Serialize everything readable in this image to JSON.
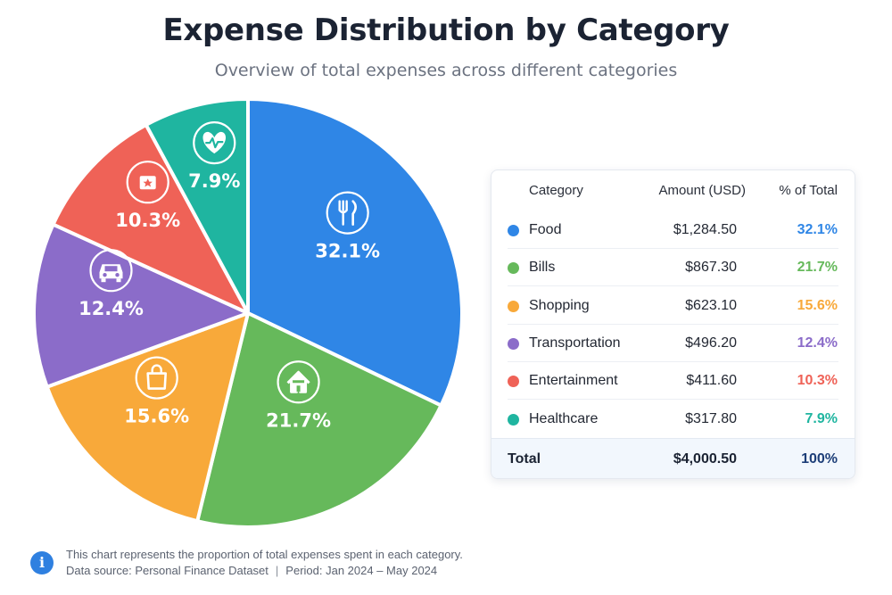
{
  "title": "Expense Distribution by Category",
  "subtitle": "Overview of total expenses across different categories",
  "chart_data": {
    "type": "pie",
    "title": "Expense Distribution by Category",
    "subtitle": "Overview of total expenses across different categories",
    "unit": "USD",
    "slices": [
      {
        "label": "Food",
        "amount": 1284.5,
        "amount_text": "$1,284.50",
        "percent": 32.1,
        "percent_text": "32.1%",
        "color": "#2f86e6",
        "icon": "utensils-icon"
      },
      {
        "label": "Bills",
        "amount": 867.3,
        "amount_text": "$867.30",
        "percent": 21.7,
        "percent_text": "21.7%",
        "color": "#66b95b",
        "icon": "home-icon"
      },
      {
        "label": "Shopping",
        "amount": 623.1,
        "amount_text": "$623.10",
        "percent": 15.6,
        "percent_text": "15.6%",
        "color": "#f8a93a",
        "icon": "shopping-bag-icon"
      },
      {
        "label": "Transportation",
        "amount": 496.2,
        "amount_text": "$496.20",
        "percent": 12.4,
        "percent_text": "12.4%",
        "color": "#8b6cc9",
        "icon": "car-icon"
      },
      {
        "label": "Entertainment",
        "amount": 411.6,
        "amount_text": "$411.60",
        "percent": 10.3,
        "percent_text": "10.3%",
        "color": "#ef6257",
        "icon": "ticket-icon"
      },
      {
        "label": "Healthcare",
        "amount": 317.8,
        "amount_text": "$317.80",
        "percent": 7.9,
        "percent_text": "7.9%",
        "color": "#1fb5a0",
        "icon": "heart-pulse-icon"
      }
    ]
  },
  "table": {
    "headers": {
      "category": "Category",
      "amount": "Amount (USD)",
      "percent": "% of Total"
    },
    "total": {
      "label": "Total",
      "amount": "$4,000.50",
      "percent": "100%"
    }
  },
  "footnote": {
    "line1": "This chart represents the proportion of total expenses spent in each category.",
    "source": "Data source: Personal Finance Dataset",
    "separator": "|",
    "period": "Period: Jan 2024 – May 2024",
    "icon": "info-icon"
  }
}
